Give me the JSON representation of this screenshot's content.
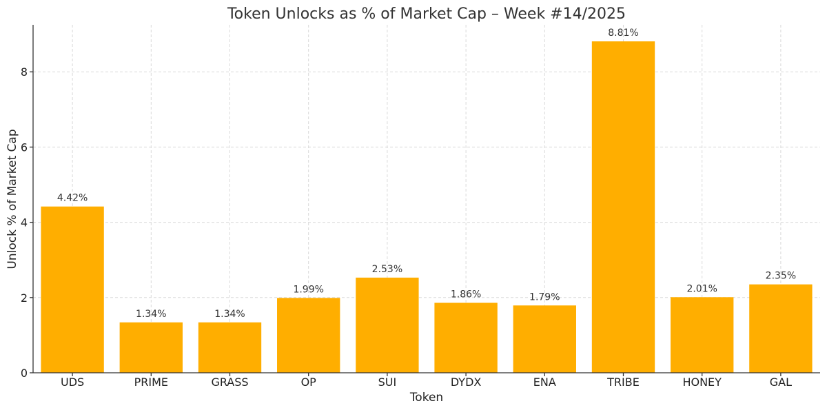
{
  "chart_data": {
    "type": "bar",
    "title": "Token Unlocks as % of Market Cap – Week #14/2025",
    "xlabel": "Token",
    "ylabel": "Unlock % of Market Cap",
    "categories": [
      "UDS",
      "PRIME",
      "GRASS",
      "OP",
      "SUI",
      "DYDX",
      "ENA",
      "TRIBE",
      "HONEY",
      "GAL"
    ],
    "values": [
      4.42,
      1.34,
      1.34,
      1.99,
      2.53,
      1.86,
      1.79,
      8.81,
      2.01,
      2.35
    ],
    "data_labels": [
      "4.42%",
      "1.34%",
      "1.34%",
      "1.99%",
      "2.53%",
      "1.86%",
      "1.79%",
      "8.81%",
      "2.01%",
      "2.35%"
    ],
    "ylim": [
      0,
      9.25
    ],
    "yticks": [
      0,
      2,
      4,
      6,
      8
    ],
    "grid": true,
    "bar_color": "#FFAE00"
  }
}
